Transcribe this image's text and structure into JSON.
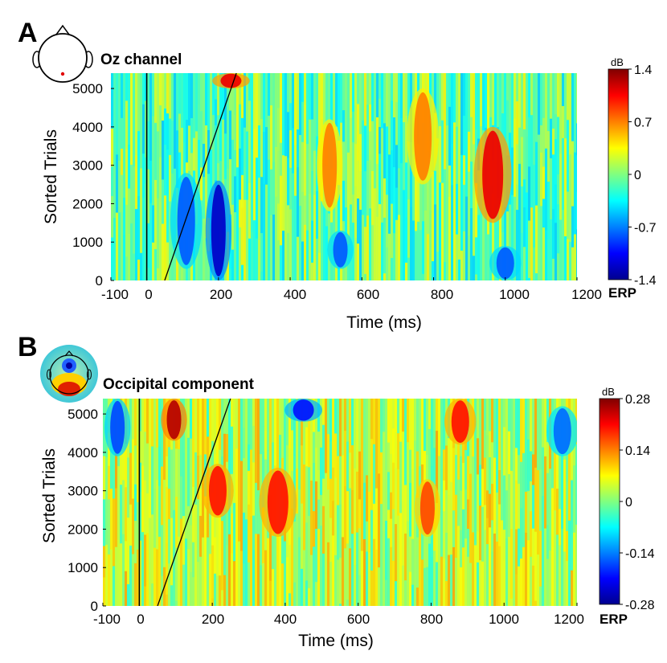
{
  "chart_data": [
    {
      "type": "heatmap",
      "panel_letter": "A",
      "title": "Oz channel",
      "xlabel": "Time (ms)",
      "ylabel": "Sorted Trials",
      "xlim": [
        -100,
        1200
      ],
      "ylim": [
        0,
        5400
      ],
      "xticks": [
        -100,
        0,
        200,
        400,
        600,
        800,
        1000,
        1200
      ],
      "yticks": [
        0,
        1000,
        2000,
        3000,
        4000,
        5000
      ],
      "colorbar": {
        "unit": "dB",
        "min": -1.4,
        "max": 1.4,
        "ticks": [
          "1.4",
          "0.7",
          "0",
          "-0.7",
          "-1.4"
        ],
        "label": "ERP"
      },
      "stimulus_onset_ms": 0,
      "sorting_line": {
        "start": [
          50,
          0
        ],
        "end": [
          250,
          5400
        ]
      },
      "features": [
        {
          "t": 200,
          "trials": [
            0,
            2600
          ],
          "value": -1.2
        },
        {
          "t": 110,
          "trials": [
            300,
            2800
          ],
          "value": -0.8
        },
        {
          "t": 965,
          "trials": [
            1500,
            4000
          ],
          "value": 1.1
        },
        {
          "t": 510,
          "trials": [
            1800,
            4200
          ],
          "value": 0.7
        },
        {
          "t": 770,
          "trials": [
            2500,
            5000
          ],
          "value": 0.7
        },
        {
          "t": 235,
          "trials": [
            5000,
            5400
          ],
          "value": 1.1
        },
        {
          "t": 540,
          "trials": [
            300,
            1300
          ],
          "value": -0.8
        },
        {
          "t": 1000,
          "trials": [
            0,
            900
          ],
          "value": -0.8
        }
      ]
    },
    {
      "type": "heatmap",
      "panel_letter": "B",
      "title": "Occipital component",
      "xlabel": "Time (ms)",
      "ylabel": "Sorted Trials",
      "xlim": [
        -100,
        1200
      ],
      "ylim": [
        0,
        5400
      ],
      "xticks": [
        -100,
        0,
        200,
        400,
        600,
        800,
        1000,
        1200
      ],
      "yticks": [
        0,
        1000,
        2000,
        3000,
        4000,
        5000
      ],
      "colorbar": {
        "unit": "dB",
        "min": -0.28,
        "max": 0.28,
        "ticks": [
          "0.28",
          "0.14",
          "0",
          "-0.14",
          "-0.28"
        ],
        "label": "ERP"
      },
      "stimulus_onset_ms": 0,
      "sorting_line": {
        "start": [
          50,
          0
        ],
        "end": [
          250,
          5400
        ]
      },
      "features": [
        {
          "t": 95,
          "trials": [
            4300,
            5400
          ],
          "value": 0.25
        },
        {
          "t": 215,
          "trials": [
            2300,
            3700
          ],
          "value": 0.2
        },
        {
          "t": 380,
          "trials": [
            1800,
            3600
          ],
          "value": 0.2
        },
        {
          "t": 790,
          "trials": [
            1800,
            3300
          ],
          "value": 0.17
        },
        {
          "t": 880,
          "trials": [
            4200,
            5400
          ],
          "value": 0.2
        },
        {
          "t": 450,
          "trials": [
            4800,
            5400
          ],
          "value": -0.2
        },
        {
          "t": -60,
          "trials": [
            3900,
            5400
          ],
          "value": -0.17
        },
        {
          "t": 1160,
          "trials": [
            3900,
            5200
          ],
          "value": -0.15
        }
      ]
    }
  ]
}
